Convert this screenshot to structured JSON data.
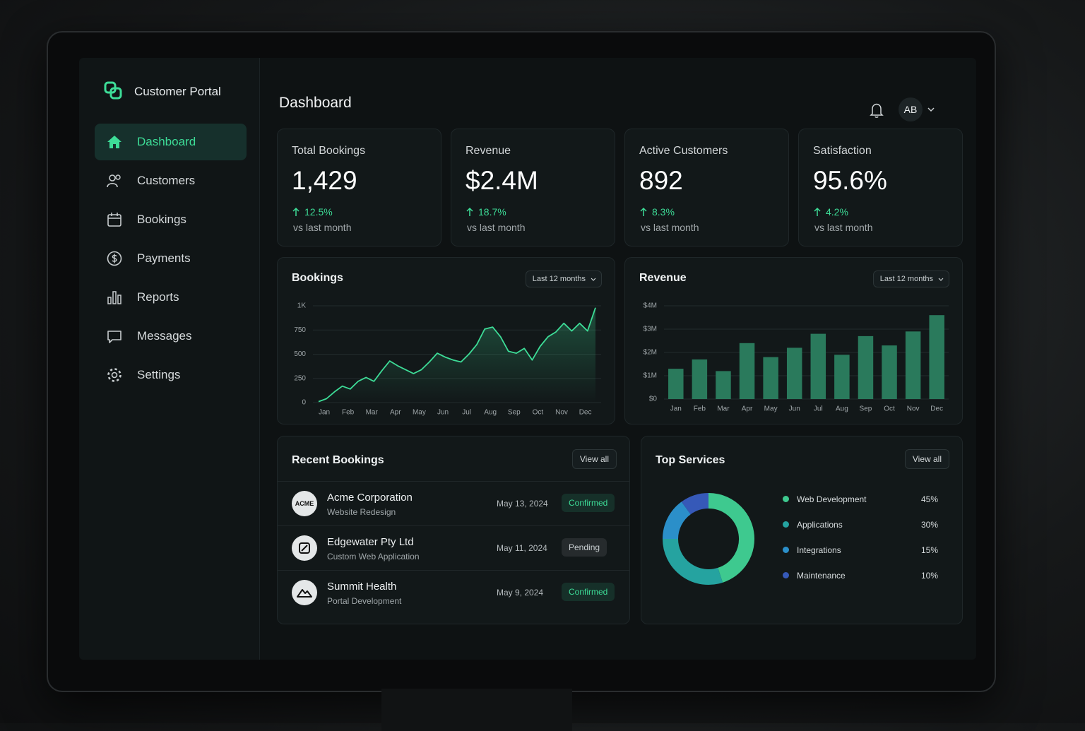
{
  "sidebar": {
    "brand": "Customer Portal",
    "nav": [
      "Dashboard",
      "Customers",
      "Bookings",
      "Payments",
      "Reports",
      "Messages",
      "Settings"
    ]
  },
  "header": {
    "title": "Dashboard",
    "avatar": "AB"
  },
  "kpis": [
    {
      "label": "Total Bookings",
      "value": "1,429",
      "change": "12.5%",
      "note": "vs last month"
    },
    {
      "label": "Revenue",
      "value": "$2.4M",
      "change": "18.7%",
      "note": "vs last month"
    },
    {
      "label": "Active Customers",
      "value": "892",
      "change": "8.3%",
      "note": "vs last month"
    },
    {
      "label": "Satisfaction",
      "value": "95.6%",
      "change": "4.2%",
      "note": "vs last month"
    }
  ],
  "bookings_chart": {
    "type": "line",
    "title": "Bookings",
    "filter": "Last 12 months",
    "color": "#3ddc97",
    "categories": [
      "Jan",
      null,
      null,
      "Feb",
      null,
      null,
      "Mar",
      null,
      null,
      "Apr",
      null,
      null,
      "May",
      null,
      null,
      "Jun",
      null,
      null,
      "Jul",
      null,
      null,
      "Aug",
      null,
      null,
      "Sep",
      null,
      null,
      "Oct",
      null,
      null,
      "Nov",
      null,
      null,
      "Dec",
      null,
      null
    ],
    "values": [
      10,
      40,
      110,
      170,
      140,
      220,
      260,
      220,
      330,
      430,
      380,
      340,
      300,
      340,
      420,
      510,
      470,
      440,
      420,
      500,
      600,
      760,
      780,
      680,
      530,
      510,
      560,
      440,
      580,
      680,
      730,
      820,
      740,
      820,
      740,
      980
    ],
    "ylim": [
      0,
      1000
    ],
    "yticks": [
      0,
      250,
      500,
      750,
      {
        "value": 1000,
        "label": "1K"
      }
    ],
    "grid": true
  },
  "revenue_chart": {
    "type": "bar",
    "title": "Revenue",
    "filter": "Last 12 months",
    "color": "#2a7a5c",
    "categories": [
      "Jan",
      "Feb",
      "Mar",
      "Apr",
      "May",
      "Jun",
      "Jul",
      "Aug",
      "Sep",
      "Oct",
      "Nov",
      "Dec"
    ],
    "values": [
      1300000,
      1700000,
      1200000,
      2400000,
      1800000,
      2200000,
      2800000,
      1900000,
      2700000,
      2300000,
      2900000,
      3600000
    ],
    "ylim": [
      0,
      4000000
    ],
    "yticks": [
      {
        "value": 0,
        "label": "$0"
      },
      {
        "value": 1000000,
        "label": "$1M"
      },
      {
        "value": 2000000,
        "label": "$2M"
      },
      {
        "value": 3000000,
        "label": "$3M"
      },
      {
        "value": 4000000,
        "label": "$4M"
      }
    ],
    "grid": true
  },
  "recent_bookings": {
    "title": "Recent Bookings",
    "action": "View all",
    "rows": [
      {
        "logo_text": "ACME",
        "name": "Acme Corporation",
        "project": "Website Redesign",
        "date": "May 13, 2024",
        "status": "Confirmed"
      },
      {
        "name": "Edgewater Pty Ltd",
        "project": "Custom Web Application",
        "date": "May 11, 2024",
        "status": "Pending"
      },
      {
        "name": "Summit Health",
        "project": "Portal Development",
        "date": "May 9, 2024",
        "status": "Confirmed"
      }
    ]
  },
  "services_chart": {
    "type": "donut",
    "title": "Top Services",
    "action": "View all",
    "categories": [
      "Web Development",
      "Applications",
      "Integrations",
      "Maintenance"
    ],
    "values": [
      45,
      30,
      15,
      10
    ],
    "value_labels": [
      "45%",
      "30%",
      "15%",
      "10%"
    ],
    "colors": [
      "#3ec98f",
      "#25a3a0",
      "#2b8fc9",
      "#3659b8"
    ]
  }
}
